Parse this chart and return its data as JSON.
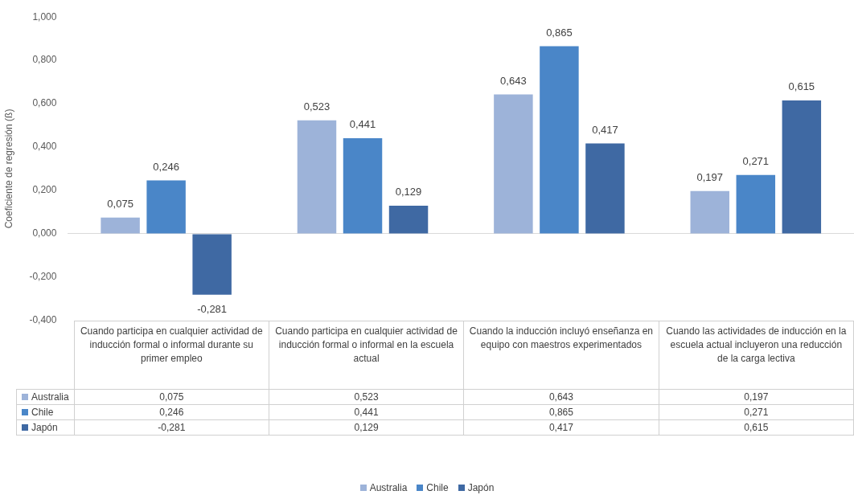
{
  "chart_data": {
    "type": "bar",
    "ylabel": "Coeficiente de regresión (ß)",
    "categories": [
      "Cuando participa en cualquier actividad de inducción formal o informal durante su primer empleo",
      "Cuando participa en cualquier actividad de inducción formal o informal en la escuela actual",
      "Cuando la inducción incluyó enseñanza en equipo con maestros experimentados",
      "Cuando las actividades de inducción en la escuela actual incluyeron una reducción de la carga lectiva"
    ],
    "series": [
      {
        "name": "Australia",
        "color": "#9db3d9",
        "values": [
          0.075,
          0.523,
          0.643,
          0.197
        ],
        "value_labels": [
          "0,075",
          "0,523",
          "0,643",
          "0,197"
        ]
      },
      {
        "name": "Chile",
        "color": "#4a86c8",
        "values": [
          0.246,
          0.441,
          0.865,
          0.271
        ],
        "value_labels": [
          "0,246",
          "0,441",
          "0,865",
          "0,271"
        ]
      },
      {
        "name": "Japón",
        "color": "#3f69a3",
        "values": [
          -0.281,
          0.129,
          0.417,
          0.615
        ],
        "value_labels": [
          "-0,281",
          "0,129",
          "0,417",
          "0,615"
        ]
      }
    ],
    "ylim": [
      -0.4,
      1.0
    ],
    "yticks": [
      {
        "value": -0.4,
        "label": "-0,400"
      },
      {
        "value": -0.2,
        "label": "-0,200"
      },
      {
        "value": 0,
        "label": "0,000"
      },
      {
        "value": 0.2,
        "label": "0,200"
      },
      {
        "value": 0.4,
        "label": "0,400"
      },
      {
        "value": 0.6,
        "label": "0,600"
      },
      {
        "value": 0.8,
        "label": "0,800"
      },
      {
        "value": 1.0,
        "label": "1,000"
      }
    ],
    "legend": "bottom"
  }
}
